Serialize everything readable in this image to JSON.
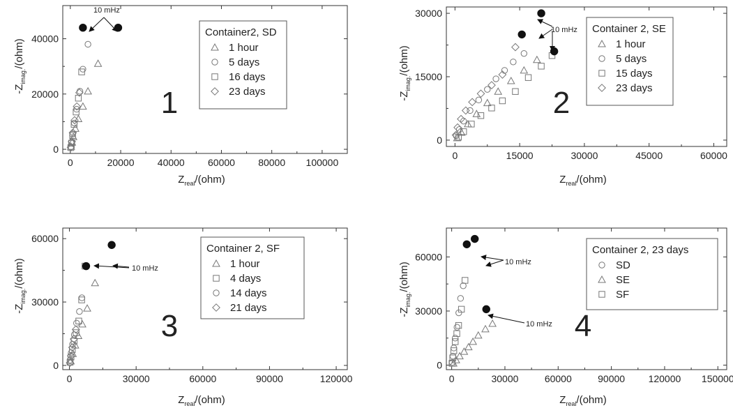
{
  "chart_data": [
    {
      "type": "scatter",
      "panel_label": "1",
      "xlabel_main": "Z",
      "xlabel_sub": "real",
      "xlabel_unit": "/(ohm)",
      "ylabel_main": "-Z",
      "ylabel_sub": "imag.",
      "ylabel_unit": "/(ohm)",
      "xlim": [
        -3000,
        110000
      ],
      "ylim": [
        -1500,
        52000
      ],
      "xticks": [
        0,
        20000,
        40000,
        60000,
        80000,
        100000
      ],
      "yticks": [
        0,
        20000,
        40000
      ],
      "legend_title": "Container2, SD",
      "series": [
        {
          "name": "1 hour",
          "marker": "triangle",
          "x": [
            300,
            700,
            1200,
            2000,
            3200,
            5000,
            7000,
            11000
          ],
          "y": [
            1000,
            2500,
            4500,
            7500,
            11000,
            15500,
            21000,
            31000
          ]
        },
        {
          "name": "5 days",
          "marker": "circle",
          "x": [
            200,
            500,
            900,
            1600,
            2500,
            3800,
            5000,
            7000
          ],
          "y": [
            800,
            2500,
            5500,
            9500,
            14500,
            21000,
            29000,
            38000
          ]
        },
        {
          "name": "16 days",
          "marker": "square",
          "x": [
            200,
            500,
            900,
            1500,
            2300,
            3200,
            4500
          ],
          "y": [
            600,
            2200,
            5000,
            9000,
            13500,
            18500,
            28000
          ]
        },
        {
          "name": "23 days",
          "marker": "diamond",
          "x": [
            200,
            600,
            1000,
            1700,
            2600,
            3600
          ],
          "y": [
            700,
            2800,
            6000,
            10500,
            15500,
            20500
          ]
        },
        {
          "name": "10 mHz points",
          "marker": "filled",
          "x": [
            5000,
            19000
          ],
          "y": [
            44000,
            44000
          ]
        }
      ],
      "annotation": {
        "text": "10 mHz"
      }
    },
    {
      "type": "scatter",
      "panel_label": "2",
      "xlabel_main": "Z",
      "xlabel_sub": "real",
      "xlabel_unit": "/(ohm)",
      "ylabel_main": "-Z",
      "ylabel_sub": "imag.",
      "ylabel_unit": "/(ohm)",
      "xlim": [
        -2000,
        63000
      ],
      "ylim": [
        -1500,
        31500
      ],
      "xticks": [
        0,
        15000,
        30000,
        45000,
        60000
      ],
      "yticks": [
        0,
        15000,
        30000
      ],
      "legend_title": "Container 2, SE",
      "series": [
        {
          "name": "1 hour",
          "marker": "triangle",
          "x": [
            500,
            1500,
            3000,
            5000,
            7500,
            10000,
            13000,
            16000,
            19000
          ],
          "y": [
            500,
            1800,
            3800,
            6200,
            8800,
            11500,
            14000,
            16500,
            19000
          ]
        },
        {
          "name": "5 days",
          "marker": "circle",
          "x": [
            300,
            1000,
            2000,
            3500,
            5500,
            7500,
            9500,
            11500,
            13500,
            16000
          ],
          "y": [
            1000,
            2500,
            4500,
            7000,
            9500,
            12000,
            14500,
            16500,
            18500,
            20500
          ]
        },
        {
          "name": "15 days",
          "marker": "square",
          "x": [
            800,
            2000,
            3800,
            6000,
            8500,
            11000,
            14000,
            17000,
            20000,
            22500
          ],
          "y": [
            700,
            2000,
            3800,
            5800,
            7600,
            9300,
            11500,
            14800,
            17500,
            20000
          ]
        },
        {
          "name": "23 days",
          "marker": "diamond",
          "x": [
            200,
            600,
            1400,
            2500,
            4000,
            6000,
            8500,
            11000,
            14000
          ],
          "y": [
            1200,
            3000,
            5000,
            7000,
            9000,
            11000,
            13000,
            15500,
            22000
          ]
        },
        {
          "name": "10 mHz points",
          "marker": "filled",
          "x": [
            15500,
            20000,
            23000
          ],
          "y": [
            25000,
            30000,
            21000
          ]
        }
      ],
      "annotation": {
        "text": "10 mHz"
      }
    },
    {
      "type": "scatter",
      "panel_label": "3",
      "xlabel_main": "Z",
      "xlabel_sub": "real",
      "xlabel_unit": "/(ohm)",
      "ylabel_main": "-Z",
      "ylabel_sub": "imag.",
      "ylabel_unit": "/(ohm)",
      "xlim": [
        -3000,
        125000
      ],
      "ylim": [
        -2000,
        65000
      ],
      "xticks": [
        0,
        30000,
        60000,
        90000,
        120000
      ],
      "yticks": [
        0,
        30000,
        60000
      ],
      "legend_title": "Container 2, SF",
      "series": [
        {
          "name": "1 hour",
          "marker": "triangle",
          "x": [
            600,
            1500,
            2600,
            4000,
            5800,
            8000,
            11500
          ],
          "y": [
            2000,
            5500,
            9500,
            14000,
            19500,
            27000,
            39000
          ]
        },
        {
          "name": "4 days",
          "marker": "square",
          "x": [
            300,
            700,
            1300,
            2100,
            3000,
            4200,
            5500,
            7000
          ],
          "y": [
            1500,
            4000,
            7500,
            11500,
            15500,
            21000,
            31000,
            47000
          ]
        },
        {
          "name": "14 days",
          "marker": "circle",
          "x": [
            300,
            800,
            1400,
            2200,
            3200,
            4500,
            5600
          ],
          "y": [
            2500,
            6000,
            10000,
            14500,
            20000,
            25500,
            32000
          ]
        },
        {
          "name": "21 days",
          "marker": "diamond",
          "x": [
            200,
            700,
            1300,
            2000,
            2900
          ],
          "y": [
            1200,
            4500,
            8500,
            12500,
            17000
          ]
        },
        {
          "name": "10 mHz points",
          "marker": "filled",
          "x": [
            7500,
            19000
          ],
          "y": [
            47000,
            57000
          ]
        }
      ],
      "annotation": {
        "text": "10 mHz"
      }
    },
    {
      "type": "scatter",
      "panel_label": "4",
      "xlabel_main": "Z",
      "xlabel_sub": "real",
      "xlabel_unit": "/(ohm)",
      "ylabel_main": "-Z",
      "ylabel_sub": "imag.",
      "ylabel_unit": "/(ohm)",
      "xlim": [
        -3000,
        155000
      ],
      "ylim": [
        -2500,
        76000
      ],
      "xticks": [
        0,
        30000,
        60000,
        90000,
        120000,
        150000
      ],
      "yticks": [
        0,
        30000,
        60000
      ],
      "legend_title": "Container 2, 23 days",
      "series": [
        {
          "name": "SD",
          "marker": "circle",
          "x": [
            300,
            700,
            1200,
            2000,
            3000,
            4000,
            5000,
            6500
          ],
          "y": [
            1500,
            5000,
            9500,
            15000,
            21000,
            29000,
            37000,
            44000
          ]
        },
        {
          "name": "SE",
          "marker": "triangle",
          "x": [
            1000,
            2500,
            4500,
            7000,
            9500,
            12000,
            15000,
            19000,
            23000
          ],
          "y": [
            1000,
            2800,
            5000,
            7500,
            10000,
            13000,
            16500,
            20000,
            23000
          ]
        },
        {
          "name": "SF",
          "marker": "square",
          "x": [
            200,
            600,
            1200,
            2000,
            2900,
            3900,
            5500,
            7500
          ],
          "y": [
            1000,
            4000,
            8000,
            13000,
            17500,
            22000,
            31000,
            47000
          ]
        },
        {
          "name": "10 mHz points",
          "marker": "filled",
          "x": [
            8500,
            13000,
            19500
          ],
          "y": [
            67000,
            70000,
            31000
          ]
        }
      ],
      "annotation": {
        "text": "10 mHz",
        "text2": "10 mHz"
      }
    }
  ]
}
